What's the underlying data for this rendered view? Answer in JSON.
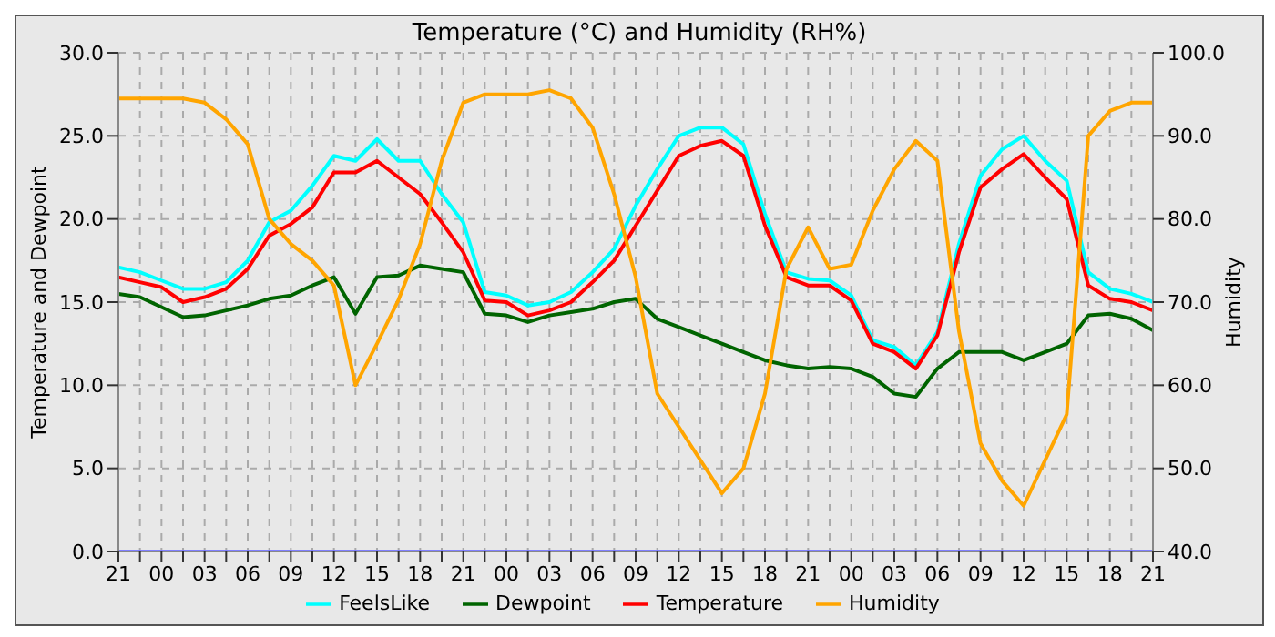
{
  "chart_data": {
    "type": "line",
    "title": "Temperature (°C) and Humidity (RH%)",
    "ylabel": "Temperature and Dewpoint",
    "y2label": "Humidity",
    "categories": [
      "21",
      null,
      "00",
      null,
      "03",
      null,
      "06",
      null,
      "09",
      null,
      "12",
      null,
      "15",
      null,
      "18",
      null,
      "21",
      null,
      "00",
      null,
      "03",
      null,
      "06",
      null,
      "09",
      null,
      "12",
      null,
      "15",
      null,
      "18",
      null,
      "21",
      null,
      "00",
      null,
      "03",
      null,
      "06",
      null,
      "09",
      null,
      "12",
      null,
      "15",
      null,
      "18",
      null,
      "21"
    ],
    "series": [
      {
        "name": "FeelsLike",
        "color": "#00ffff",
        "values": [
          17.1,
          16.8,
          16.3,
          15.8,
          15.8,
          16.2,
          17.5,
          19.8,
          20.5,
          22,
          23.8,
          23.5,
          24.8,
          23.5,
          23.5,
          21.5,
          19.8,
          15.6,
          15.4,
          14.8,
          15,
          15.6,
          16.8,
          18.2,
          20.8,
          23,
          25,
          25.5,
          25.5,
          24.5,
          20.3,
          16.8,
          16.4,
          16.3,
          15.4,
          12.7,
          12.3,
          11.2,
          13.2,
          18.5,
          22.6,
          24.2,
          25,
          23.5,
          22.3,
          16.8,
          15.8,
          15.5,
          15
        ]
      },
      {
        "name": "Dewpoint",
        "color": "#006400",
        "values": [
          15.5,
          15.3,
          14.7,
          14.1,
          14.2,
          14.5,
          14.8,
          15.2,
          15.4,
          16,
          16.5,
          14.3,
          16.5,
          16.6,
          17.2,
          17,
          16.8,
          14.3,
          14.2,
          13.8,
          14.2,
          14.4,
          14.6,
          15,
          15.2,
          14,
          13.5,
          13,
          12.5,
          12,
          11.5,
          11.2,
          11,
          11.1,
          11,
          10.5,
          9.5,
          9.3,
          11,
          12,
          12,
          12,
          11.5,
          12,
          12.5,
          14.2,
          14.3,
          14,
          13.3
        ]
      },
      {
        "name": "Temperature",
        "color": "#ff0000",
        "values": [
          16.5,
          16.2,
          15.9,
          15,
          15.3,
          15.8,
          17,
          19,
          19.7,
          20.7,
          22.8,
          22.8,
          23.5,
          22.5,
          21.5,
          19.8,
          18,
          15.1,
          15,
          14.2,
          14.5,
          15,
          16.2,
          17.5,
          19.6,
          21.7,
          23.8,
          24.4,
          24.7,
          23.8,
          19.6,
          16.5,
          16,
          16,
          15.1,
          12.5,
          12,
          11,
          13,
          18,
          21.9,
          23,
          23.9,
          22.5,
          21.2,
          16,
          15.2,
          15,
          14.5
        ]
      },
      {
        "name": "Humidity",
        "color": "#ffa500",
        "axis": "y2",
        "values": [
          94.5,
          94.5,
          94.5,
          94.5,
          94,
          92,
          89,
          80,
          77,
          75,
          72,
          60,
          65,
          70.3,
          77,
          87,
          94,
          95,
          95,
          95,
          95.5,
          94.5,
          91,
          83,
          73,
          59,
          55,
          51,
          47,
          50,
          59,
          74,
          79,
          74,
          74.5,
          81,
          86,
          89.4,
          87,
          66.5,
          53,
          48.5,
          45.5,
          51,
          56.5,
          90,
          93,
          94,
          94
        ]
      },
      {
        "color": "#8080ff",
        "values": [
          0,
          0,
          0,
          0,
          0,
          0,
          0,
          0,
          0,
          0,
          0,
          0,
          0,
          0,
          0,
          0,
          0,
          0,
          0,
          0,
          0,
          0,
          0,
          0,
          0,
          0,
          0,
          0,
          0,
          0,
          0,
          0,
          0,
          0,
          0,
          0,
          0,
          0,
          0,
          0,
          0,
          0,
          0,
          0,
          0,
          0,
          0,
          0,
          0
        ]
      }
    ],
    "ylim": [
      0,
      30
    ],
    "yticks": [
      {
        "value": 0,
        "label": "0.0"
      },
      {
        "value": 5,
        "label": "5.0"
      },
      {
        "value": 10,
        "label": "10.0"
      },
      {
        "value": 15,
        "label": "15.0"
      },
      {
        "value": 20,
        "label": "20.0"
      },
      {
        "value": 25,
        "label": "25.0"
      },
      {
        "value": 30,
        "label": "30.0"
      }
    ],
    "y2lim": [
      40,
      100
    ],
    "y2ticks": [
      {
        "value": 40,
        "label": "40.0"
      },
      {
        "value": 50,
        "label": "50.0"
      },
      {
        "value": 60,
        "label": "60.0"
      },
      {
        "value": 70,
        "label": "70.0"
      },
      {
        "value": 80,
        "label": "80.0"
      },
      {
        "value": 90,
        "label": "90.0"
      },
      {
        "value": 100,
        "label": "100.0"
      }
    ],
    "grid": true,
    "legend": "bottom",
    "marker": "none",
    "line_style": "solid"
  }
}
